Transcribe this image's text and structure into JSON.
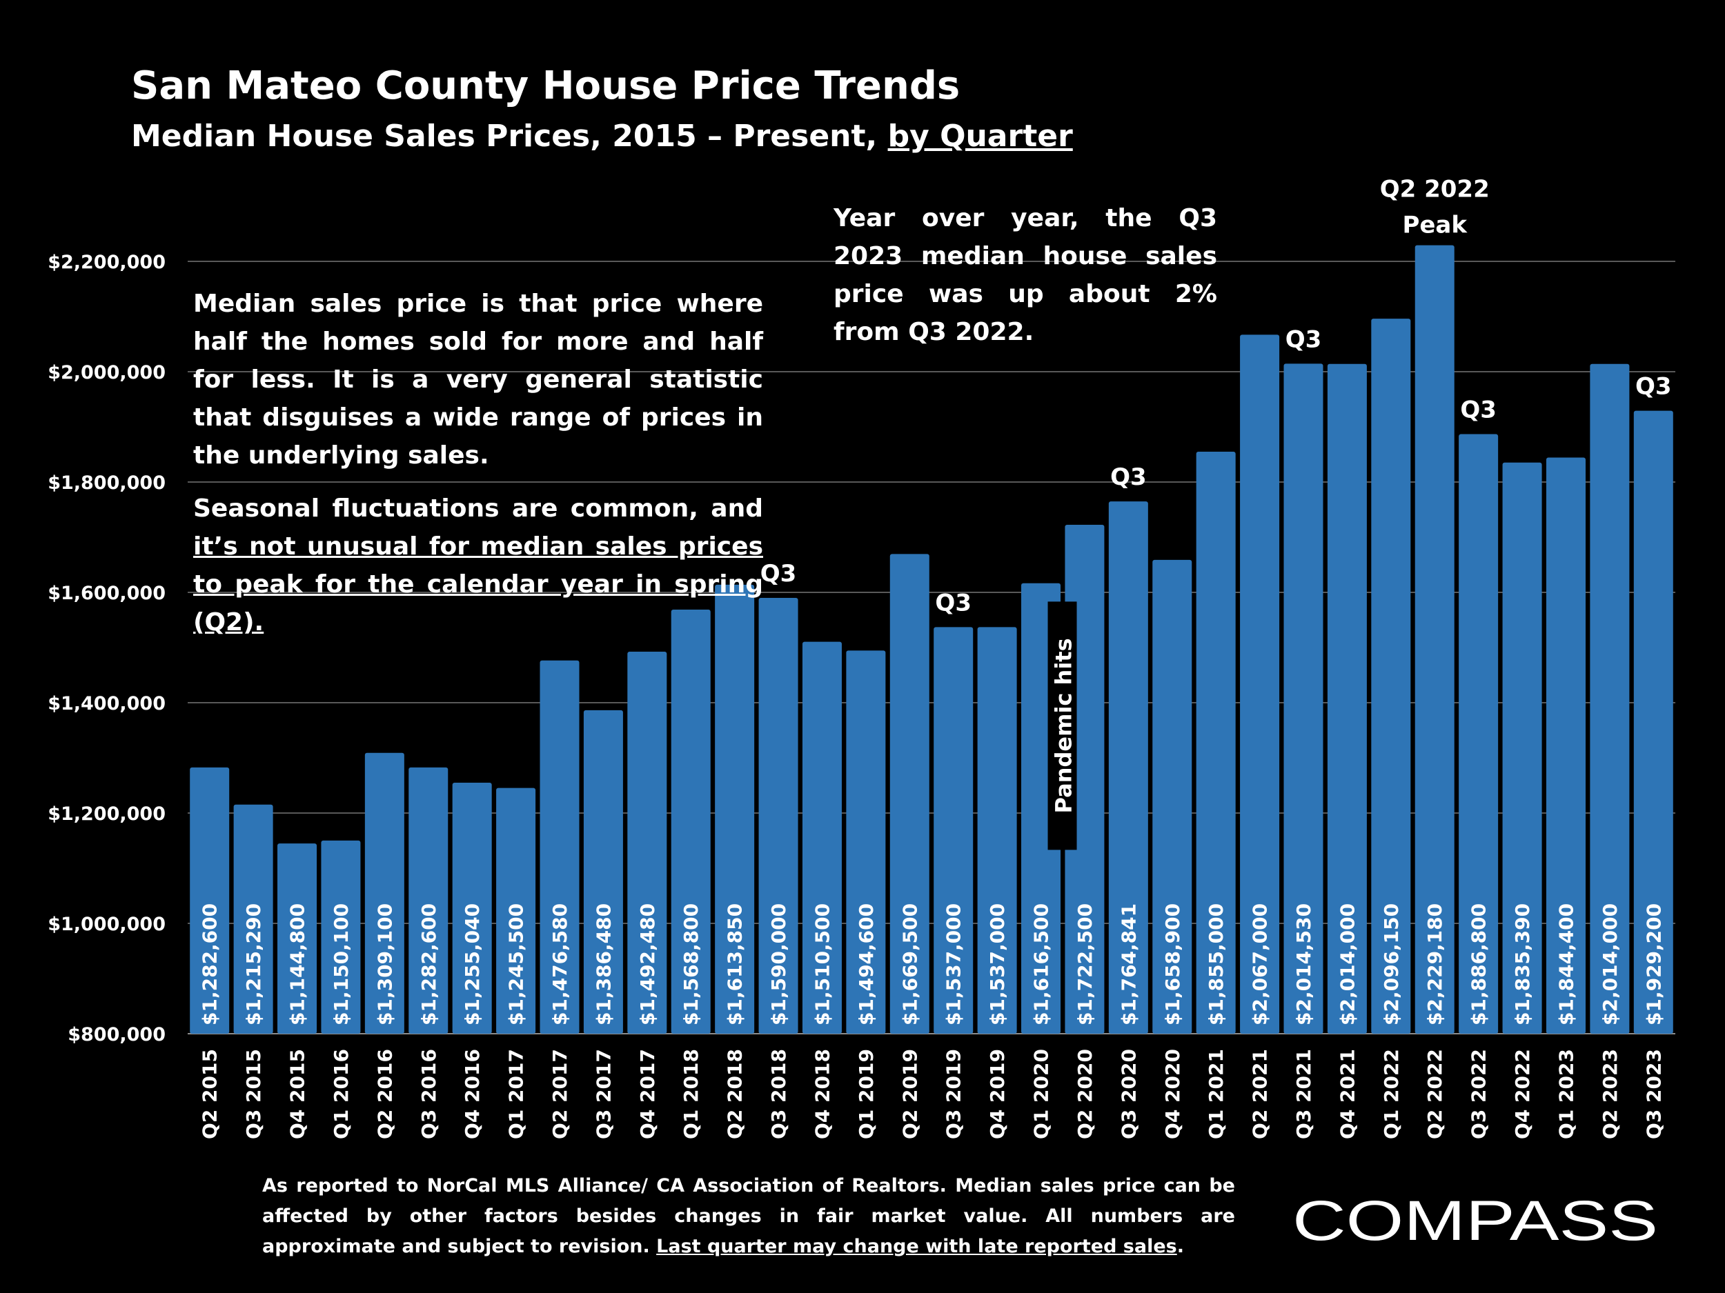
{
  "title": "San Mateo County House Price Trends",
  "subtitle_prefix": "Median House Sales Prices, 2015 – Present,",
  "subtitle_link": "by Quarter",
  "note_left_p1": "Median sales price is that price where half the homes sold for more and half for less. It is a very general statistic that disguises a wide range of prices in the underlying sales.",
  "note_left_p2_plain": "Seasonal fluctuations are common, and",
  "note_left_p2_underlined": "it’s not unusual for median sales prices to peak for the calendar year in spring (Q2).",
  "note_top": "Year over year, the Q3 2023 median house sales price was up about 2% from Q3 2022.",
  "footnote_plain": "As reported to NorCal MLS Alliance/ CA Association of Realtors. Median sales price can be affected by other factors besides changes in fair market value. All numbers are approximate and subject to revision.",
  "footnote_underlined": "Last quarter may change with late reported sales",
  "footnote_end": ".",
  "logo_text": "COMPASS",
  "colors": {
    "background": "#000000",
    "bar": "#2E75B6",
    "text": "#FFFFFF",
    "grid": "#595959"
  },
  "chart_data": {
    "type": "bar",
    "categories": [
      "Q2 2015",
      "Q3 2015",
      "Q4 2015",
      "Q1 2016",
      "Q2 2016",
      "Q3 2016",
      "Q4 2016",
      "Q1 2017",
      "Q2 2017",
      "Q3 2017",
      "Q4 2017",
      "Q1 2018",
      "Q2 2018",
      "Q3 2018",
      "Q4 2018",
      "Q1 2019",
      "Q2 2019",
      "Q3 2019",
      "Q4 2019",
      "Q1 2020",
      "Q2 2020",
      "Q3 2020",
      "Q4 2020",
      "Q1 2021",
      "Q2 2021",
      "Q3 2021",
      "Q4 2021",
      "Q1 2022",
      "Q2 2022",
      "Q3 2022",
      "Q4 2022",
      "Q1 2023",
      "Q2 2023",
      "Q3 2023"
    ],
    "values": [
      1282600,
      1215290,
      1144800,
      1150100,
      1309100,
      1282600,
      1255040,
      1245500,
      1476580,
      1386480,
      1492480,
      1568800,
      1613850,
      1590000,
      1510500,
      1494600,
      1669500,
      1537000,
      1537000,
      1616500,
      1722500,
      1764841,
      1658900,
      1855000,
      2067000,
      2014530,
      2014000,
      2096150,
      2229180,
      1886800,
      1835390,
      1844400,
      2014000,
      1929200
    ],
    "labels": [
      "$1,282,600",
      "$1,215,290",
      "$1,144,800",
      "$1,150,100",
      "$1,309,100",
      "$1,282,600",
      "$1,255,040",
      "$1,245,500",
      "$1,476,580",
      "$1,386,480",
      "$1,492,480",
      "$1,568,800",
      "$1,613,850",
      "$1,590,000",
      "$1,510,500",
      "$1,494,600",
      "$1,669,500",
      "$1,537,000",
      "$1,537,000",
      "$1,616,500",
      "$1,722,500",
      "$1,764,841",
      "$1,658,900",
      "$1,855,000",
      "$2,067,000",
      "$2,014,530",
      "$2,014,000",
      "$2,096,150",
      "$2,229,180",
      "$1,886,800",
      "$1,835,390",
      "$1,844,400",
      "$2,014,000",
      "$1,929,200"
    ],
    "ylim": [
      800000,
      2300000
    ],
    "yticks": [
      800000,
      1000000,
      1200000,
      1400000,
      1600000,
      1800000,
      2000000,
      2200000
    ],
    "ytick_labels": [
      "$800,000",
      "$1,000,000",
      "$1,200,000",
      "$1,400,000",
      "$1,600,000",
      "$1,800,000",
      "$2,000,000",
      "$2,200,000"
    ],
    "grid": true,
    "annotations": [
      {
        "category": "Q3 2018",
        "text": "Q3"
      },
      {
        "category": "Q3 2019",
        "text": "Q3"
      },
      {
        "category": "Q3 2020",
        "text": "Q3"
      },
      {
        "category": "Q3 2021",
        "text": "Q3"
      },
      {
        "category": "Q3 2022",
        "text": "Q3"
      },
      {
        "category": "Q3 2023",
        "text": "Q3"
      },
      {
        "category": "Q2 2022",
        "text": "Q2 2022",
        "text2": "Peak"
      }
    ],
    "pandemic_marker": {
      "category": "Q1 2020",
      "text": "Pandemic hits"
    }
  }
}
